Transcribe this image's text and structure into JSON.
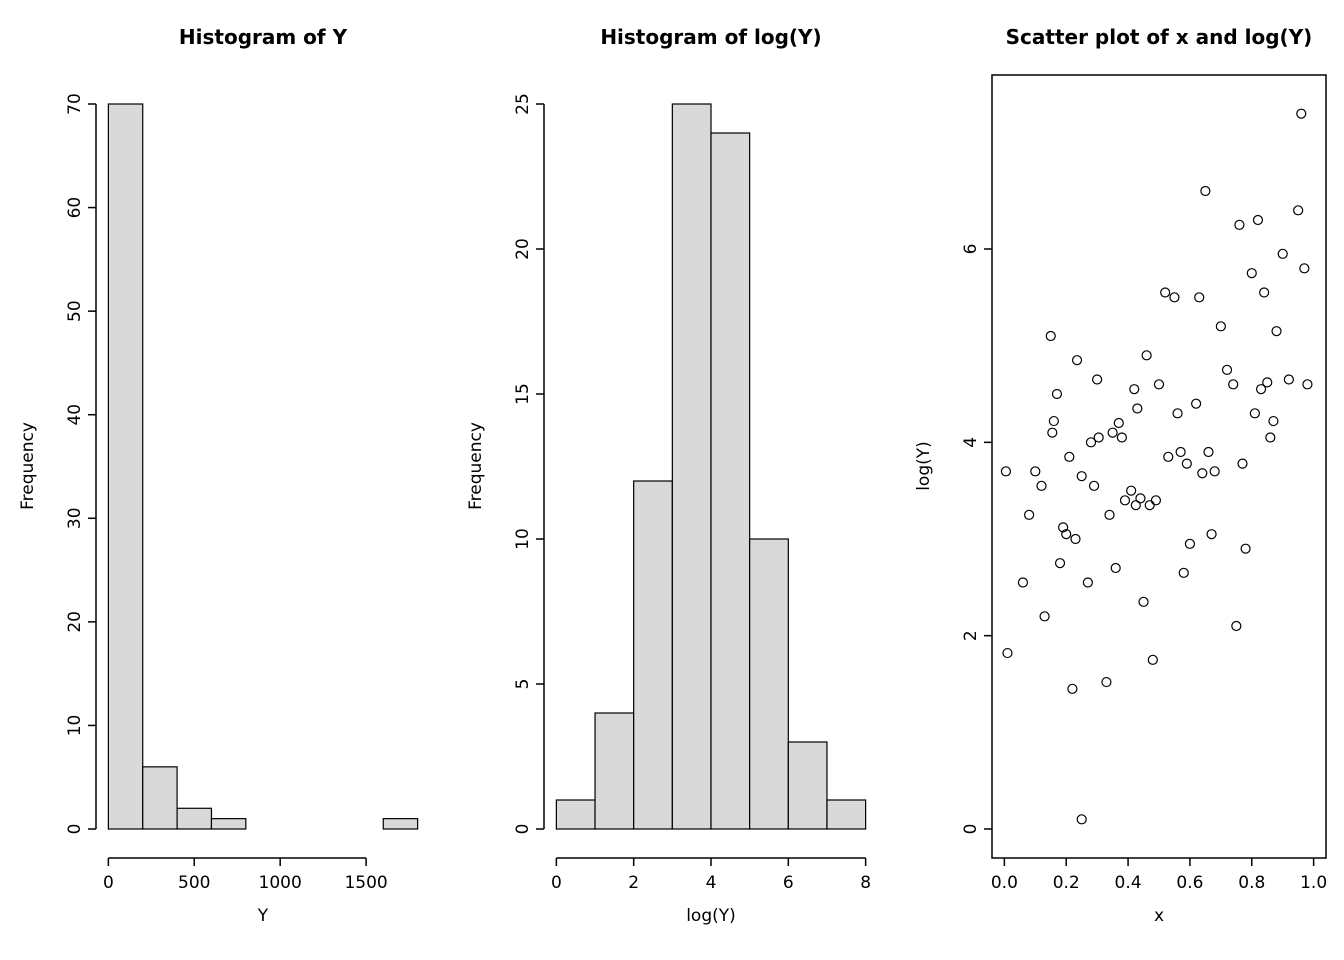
{
  "figure": {
    "background": "#ffffff",
    "text_color": "#000000",
    "axis_color": "#000000"
  },
  "chart_data": [
    {
      "type": "bar",
      "subtype": "histogram",
      "title": "Histogram of Y",
      "xlabel": "Y",
      "ylabel": "Frequency",
      "bin_start": 0,
      "bin_width": 200,
      "values": [
        70,
        6,
        2,
        1,
        0,
        0,
        0,
        0,
        1
      ],
      "xlim": [
        0,
        1800
      ],
      "ylim": [
        0,
        70
      ],
      "xticks": [
        0,
        500,
        1000,
        1500
      ],
      "xtick_labels": [
        "0",
        "500",
        "1000",
        "1500"
      ],
      "yticks": [
        0,
        10,
        20,
        30,
        40,
        50,
        60,
        70
      ],
      "ytick_labels": [
        "0",
        "10",
        "20",
        "30",
        "40",
        "50",
        "60",
        "70"
      ],
      "bar_fill": "#d9d9d9",
      "bar_stroke": "#000000",
      "grid": false,
      "legend": false,
      "box": false
    },
    {
      "type": "bar",
      "subtype": "histogram",
      "title": "Histogram of log(Y)",
      "xlabel": "log(Y)",
      "ylabel": "Frequency",
      "bin_start": 0,
      "bin_width": 1,
      "values": [
        1,
        4,
        12,
        25,
        24,
        10,
        3,
        1
      ],
      "xlim": [
        0,
        8
      ],
      "ylim": [
        0,
        25
      ],
      "xticks": [
        0,
        2,
        4,
        6,
        8
      ],
      "xtick_labels": [
        "0",
        "2",
        "4",
        "6",
        "8"
      ],
      "yticks": [
        0,
        5,
        10,
        15,
        20,
        25
      ],
      "ytick_labels": [
        "0",
        "5",
        "10",
        "15",
        "20",
        "25"
      ],
      "bar_fill": "#d9d9d9",
      "bar_stroke": "#000000",
      "grid": false,
      "legend": false,
      "box": false
    },
    {
      "type": "scatter",
      "title": "Scatter plot of x and log(Y)",
      "xlabel": "x",
      "ylabel": "log(Y)",
      "xlim": [
        0,
        1
      ],
      "ylim": [
        0,
        7.5
      ],
      "xticks": [
        0,
        0.2,
        0.4,
        0.6,
        0.8,
        1
      ],
      "xtick_labels": [
        "0.0",
        "0.2",
        "0.4",
        "0.6",
        "0.8",
        "1.0"
      ],
      "yticks": [
        0,
        2,
        4,
        6
      ],
      "ytick_labels": [
        "0",
        "2",
        "4",
        "6"
      ],
      "marker": "open-circle",
      "marker_color": "#000000",
      "grid": false,
      "legend": false,
      "box": true,
      "points": [
        [
          0.005,
          3.7
        ],
        [
          0.01,
          1.82
        ],
        [
          0.06,
          2.55
        ],
        [
          0.08,
          3.25
        ],
        [
          0.1,
          3.7
        ],
        [
          0.12,
          3.55
        ],
        [
          0.13,
          2.2
        ],
        [
          0.15,
          5.1
        ],
        [
          0.155,
          4.1
        ],
        [
          0.16,
          4.22
        ],
        [
          0.17,
          4.5
        ],
        [
          0.18,
          2.75
        ],
        [
          0.19,
          3.12
        ],
        [
          0.2,
          3.05
        ],
        [
          0.21,
          3.85
        ],
        [
          0.22,
          1.45
        ],
        [
          0.23,
          3.0
        ],
        [
          0.235,
          4.85
        ],
        [
          0.25,
          0.1
        ],
        [
          0.25,
          3.65
        ],
        [
          0.27,
          2.55
        ],
        [
          0.28,
          4.0
        ],
        [
          0.29,
          3.55
        ],
        [
          0.3,
          4.65
        ],
        [
          0.305,
          4.05
        ],
        [
          0.33,
          1.52
        ],
        [
          0.34,
          3.25
        ],
        [
          0.35,
          4.1
        ],
        [
          0.36,
          2.7
        ],
        [
          0.37,
          4.2
        ],
        [
          0.38,
          4.05
        ],
        [
          0.39,
          3.4
        ],
        [
          0.41,
          3.5
        ],
        [
          0.42,
          4.55
        ],
        [
          0.425,
          3.35
        ],
        [
          0.43,
          4.35
        ],
        [
          0.44,
          3.42
        ],
        [
          0.45,
          2.35
        ],
        [
          0.46,
          4.9
        ],
        [
          0.47,
          3.35
        ],
        [
          0.48,
          1.75
        ],
        [
          0.49,
          3.4
        ],
        [
          0.5,
          4.6
        ],
        [
          0.52,
          5.55
        ],
        [
          0.53,
          3.85
        ],
        [
          0.55,
          5.5
        ],
        [
          0.56,
          4.3
        ],
        [
          0.57,
          3.9
        ],
        [
          0.58,
          2.65
        ],
        [
          0.59,
          3.78
        ],
        [
          0.6,
          2.95
        ],
        [
          0.62,
          4.4
        ],
        [
          0.63,
          5.5
        ],
        [
          0.64,
          3.68
        ],
        [
          0.65,
          6.6
        ],
        [
          0.66,
          3.9
        ],
        [
          0.67,
          3.05
        ],
        [
          0.68,
          3.7
        ],
        [
          0.7,
          5.2
        ],
        [
          0.72,
          4.75
        ],
        [
          0.74,
          4.6
        ],
        [
          0.75,
          2.1
        ],
        [
          0.76,
          6.25
        ],
        [
          0.77,
          3.78
        ],
        [
          0.78,
          2.9
        ],
        [
          0.8,
          5.75
        ],
        [
          0.81,
          4.3
        ],
        [
          0.82,
          6.3
        ],
        [
          0.83,
          4.55
        ],
        [
          0.84,
          5.55
        ],
        [
          0.85,
          4.62
        ],
        [
          0.86,
          4.05
        ],
        [
          0.87,
          4.22
        ],
        [
          0.88,
          5.15
        ],
        [
          0.9,
          5.95
        ],
        [
          0.92,
          4.65
        ],
        [
          0.95,
          6.4
        ],
        [
          0.96,
          7.4
        ],
        [
          0.97,
          5.8
        ],
        [
          0.98,
          4.6
        ]
      ]
    }
  ]
}
